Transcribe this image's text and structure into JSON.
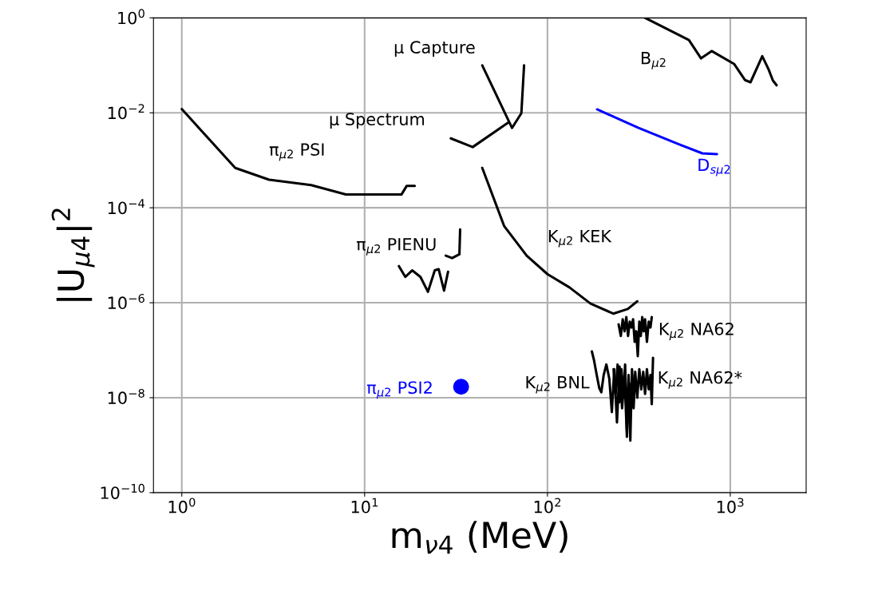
{
  "chart_data": {
    "type": "line",
    "xlabel": "m$_{ν4}$ (MeV)",
    "ylabel": "|U$_{μ4}$|$^{2}$",
    "log": "xy",
    "grid": true,
    "line_style": "solid",
    "marker": "none",
    "xlim": [
      0.7,
      2600
    ],
    "ylim": [
      1e-10,
      1
    ],
    "xticks": [
      {
        "value": 1,
        "label": "10$^{0}$"
      },
      {
        "value": 10,
        "label": "10$^{1}$"
      },
      {
        "value": 100,
        "label": "10$^{2}$"
      },
      {
        "value": 1000,
        "label": "10$^{3}$"
      }
    ],
    "yticks": [
      {
        "value": 1e-10,
        "label": "10$^{−10}$"
      },
      {
        "value": 1e-08,
        "label": "10$^{−8}$"
      },
      {
        "value": 1e-06,
        "label": "10$^{−6}$"
      },
      {
        "value": 0.0001,
        "label": "10$^{−4}$"
      },
      {
        "value": 0.01,
        "label": "10$^{−2}$"
      },
      {
        "value": 1,
        "label": "10$^{0}$"
      }
    ],
    "series": [
      {
        "name": "π$_{μ2}$ PSI",
        "color": "#000000",
        "x": [
          1.0,
          1.96,
          3.0,
          5.1,
          7.9,
          15.9,
          17.0,
          18.8
        ],
        "values": [
          0.012,
          0.00069,
          0.00039,
          0.0003,
          0.00019,
          0.00019,
          0.00029,
          0.00029
        ]
      },
      {
        "name": "μ Capture",
        "color": "#000000",
        "x": [
          44,
          64,
          72,
          74.5
        ],
        "values": [
          0.1,
          0.0048,
          0.0098,
          0.1
        ]
      },
      {
        "name": "μ Spectrum",
        "color": "#000000",
        "x": [
          29.6,
          39,
          61
        ],
        "values": [
          0.0029,
          0.0019,
          0.0062
        ]
      },
      {
        "name": "B$_{μ2}$",
        "color": "#000000",
        "x": [
          342,
          594,
          692,
          791,
          1052,
          1203,
          1290,
          1496,
          1620,
          1710,
          1792
        ],
        "values": [
          1.0,
          0.34,
          0.14,
          0.2,
          0.106,
          0.049,
          0.044,
          0.156,
          0.082,
          0.048,
          0.038
        ]
      },
      {
        "name": "D$_{sμ2}$",
        "color": "#0000ff",
        "x": [
          187,
          315,
          520,
          703,
          846
        ],
        "values": [
          0.0118,
          0.0048,
          0.0022,
          0.0014,
          0.00135
        ]
      },
      {
        "name": "K$_{μ2}$ KEK",
        "color": "#000000",
        "x": [
          44,
          58,
          77,
          100,
          132,
          172,
          229,
          275,
          310
        ],
        "values": [
          0.00069,
          4.1e-05,
          9.8e-06,
          4e-06,
          2.1e-06,
          9.6e-07,
          5.9e-07,
          7.4e-07,
          1.07e-06
        ]
      },
      {
        "name": "π$_{μ2}$ PIENU",
        "color": "#000000",
        "x": [
          27.8,
          30.1,
          33,
          33.3
        ],
        "values": [
          9.8e-06,
          8.7e-06,
          1.05e-05,
          3.5e-05
        ]
      },
      {
        "color": "#000000",
        "x": [
          15.4,
          16.7,
          18.2,
          20.2,
          22.2,
          24.2,
          25.4,
          27.2,
          28.6
        ],
        "values": [
          5.9e-06,
          3.5e-06,
          4.8e-06,
          3.5e-06,
          1.7e-06,
          4.8e-06,
          5.1e-06,
          1.8e-06,
          4.5e-06
        ]
      },
      {
        "name": "K$_{μ2}$ NA62",
        "color": "#000000",
        "x": [
          245,
          252,
          258,
          264,
          270,
          276,
          282,
          288,
          294,
          300,
          306,
          312,
          318,
          324,
          330,
          336,
          342,
          350,
          358,
          366,
          372
        ],
        "values": [
          3.5e-07,
          2e-07,
          4.5e-07,
          2.5e-07,
          5e-07,
          2e-07,
          4e-07,
          3e-07,
          4.5e-07,
          1.5e-07,
          2.5e-07,
          7.5e-08,
          4e-07,
          2e-07,
          5e-07,
          2.5e-07,
          4.5e-07,
          1.5e-07,
          4e-07,
          3e-07,
          5e-07
        ]
      },
      {
        "name": "K$_{μ2}$ BNL",
        "color": "#000000",
        "x": [
          175,
          180,
          186,
          192,
          197,
          203,
          210,
          218,
          225,
          232,
          240,
          248,
          256,
          264,
          272,
          280,
          290,
          300
        ],
        "values": [
          9.4e-08,
          6e-08,
          3e-08,
          1.6e-08,
          1.3e-08,
          3e-08,
          5e-08,
          2.5e-08,
          5e-09,
          4e-08,
          3e-09,
          4.5e-08,
          6e-09,
          3e-08,
          1.5e-09,
          2e-08,
          8e-09,
          3e-08
        ]
      },
      {
        "name": "K$_{μ2}$ NA62*",
        "color": "#000000",
        "x": [
          230,
          236,
          242,
          248,
          254,
          260,
          266,
          272,
          278,
          284,
          290,
          296,
          302,
          310,
          318,
          326,
          334,
          342,
          350,
          358,
          366,
          372,
          378
        ],
        "values": [
          4e-08,
          1.2e-08,
          5e-08,
          8e-09,
          4e-08,
          1e-08,
          5e-08,
          2e-09,
          3e-08,
          1.25e-09,
          4e-08,
          6e-09,
          3.5e-08,
          1e-08,
          4e-08,
          1.5e-08,
          3.5e-08,
          1.2e-08,
          4e-08,
          1.5e-08,
          3e-08,
          7.3e-09,
          6.9e-08
        ]
      },
      {
        "name": "π$_{μ2}$ PSI2",
        "type": "scatter",
        "color": "#0000ff",
        "marker": "circle",
        "x": [
          33.7
        ],
        "values": [
          1.7e-08
        ]
      }
    ]
  }
}
